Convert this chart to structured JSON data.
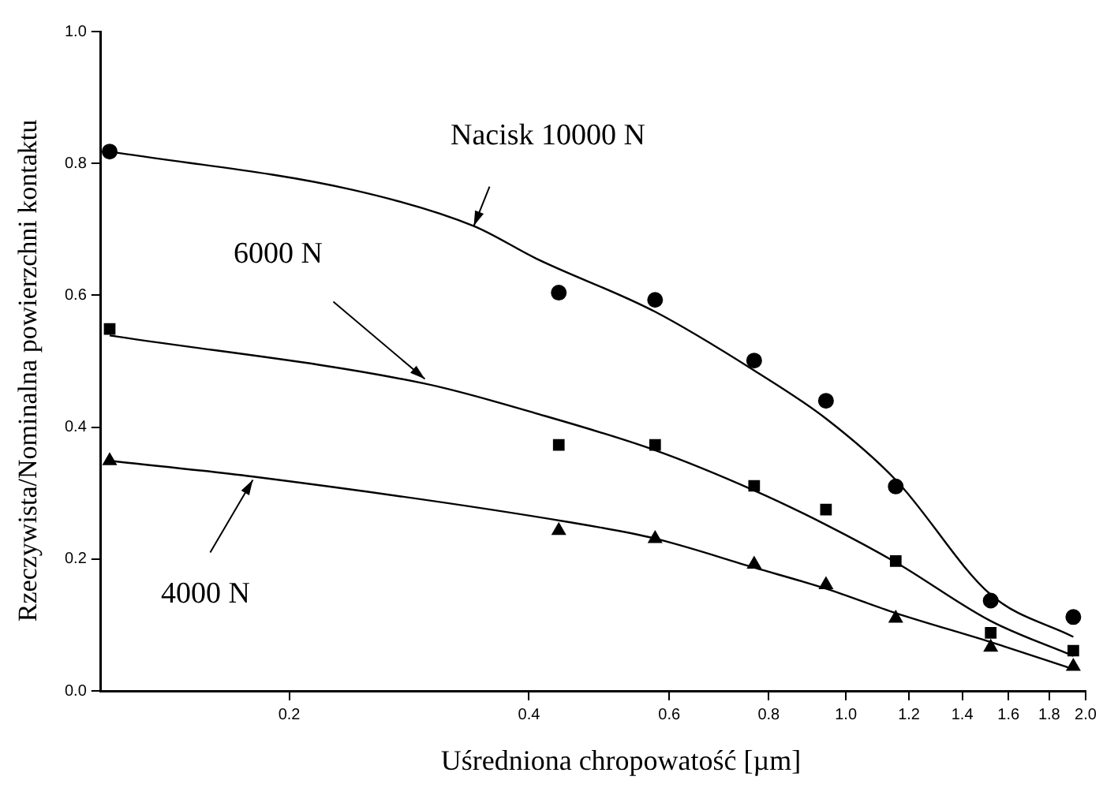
{
  "chart_data": {
    "type": "scatter",
    "xlabel": "Uśredniona chropowatość [µm]",
    "ylabel": "Rzeczywista/Nominalna powierzchni kontaktu",
    "log": "x",
    "grid": false,
    "legend": false,
    "xlim": [
      0.116,
      2.0
    ],
    "ylim": [
      0,
      1.0
    ],
    "xticks": [
      0.2,
      0.4,
      0.6,
      0.8,
      {
        "value": 1,
        "label": "1.0"
      },
      1.2,
      1.4,
      1.6,
      1.8,
      {
        "value": 2,
        "label": "2.0"
      }
    ],
    "yticks": [
      {
        "value": 0,
        "label": "0.0"
      },
      0.2,
      0.4,
      0.6,
      0.8,
      {
        "value": 1,
        "label": "1.0"
      }
    ],
    "series": [
      {
        "type": "scatter",
        "marker": "circle",
        "color": "#000000",
        "x": [
          0.119,
          0.436,
          0.576,
          0.767,
          0.944,
          1.155,
          1.52,
          1.93
        ],
        "values": [
          0.818,
          0.604,
          0.593,
          0.501,
          0.44,
          0.31,
          0.137,
          0.112
        ]
      },
      {
        "type": "scatter",
        "marker": "square",
        "color": "#000000",
        "x": [
          0.119,
          0.436,
          0.576,
          0.767,
          0.944,
          1.155,
          1.52,
          1.93
        ],
        "values": [
          0.549,
          0.373,
          0.373,
          0.311,
          0.275,
          0.197,
          0.088,
          0.061
        ]
      },
      {
        "type": "scatter",
        "marker": "triangle",
        "color": "#000000",
        "x": [
          0.119,
          0.436,
          0.576,
          0.767,
          0.944,
          1.155,
          1.52,
          1.93
        ],
        "values": [
          0.349,
          0.243,
          0.231,
          0.192,
          0.161,
          0.11,
          0.066,
          0.037
        ]
      },
      {
        "type": "line",
        "marker": "none",
        "color": "#000000",
        "x": [
          0.119,
          0.24,
          0.341,
          0.408,
          0.576,
          0.767,
          0.944,
          1.155,
          1.52,
          1.93
        ],
        "values": [
          0.818,
          0.76,
          0.705,
          0.656,
          0.575,
          0.486,
          0.413,
          0.32,
          0.146,
          0.082
        ]
      },
      {
        "type": "line",
        "marker": "none",
        "color": "#000000",
        "x": [
          0.119,
          0.296,
          0.408,
          0.576,
          0.767,
          0.944,
          1.155,
          1.52,
          1.93
        ],
        "values": [
          0.539,
          0.466,
          0.421,
          0.365,
          0.304,
          0.252,
          0.195,
          0.106,
          0.053
        ]
      },
      {
        "type": "line",
        "marker": "none",
        "color": "#000000",
        "x": [
          0.119,
          0.18,
          0.449,
          0.576,
          0.767,
          0.944,
          1.155,
          1.52,
          1.93
        ],
        "values": [
          0.349,
          0.325,
          0.256,
          0.231,
          0.187,
          0.155,
          0.118,
          0.074,
          0.033
        ]
      }
    ],
    "annotations": [
      {
        "text": "Nacisk 10000 N",
        "x": 0.341,
        "y": 0.705
      },
      {
        "text": "6000 N",
        "x": 0.296,
        "y": 0.473
      },
      {
        "text": "4000 N",
        "x": 0.18,
        "y": 0.32
      }
    ]
  }
}
